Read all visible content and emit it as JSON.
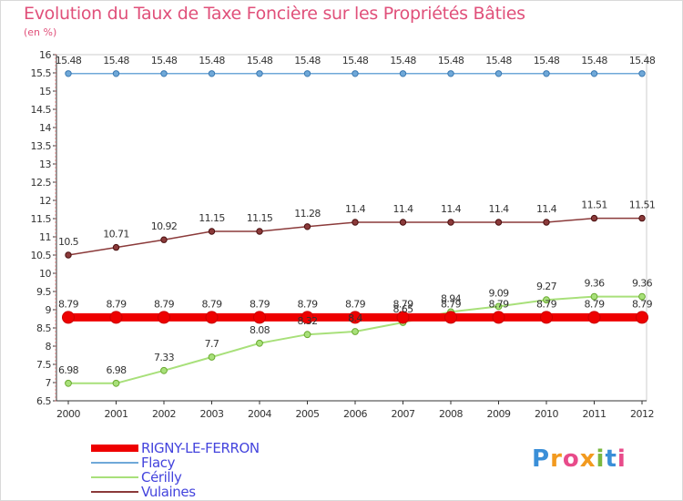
{
  "chart_data": {
    "type": "line",
    "title": "Evolution du Taux de Taxe Foncière sur les Propriétés Bâties",
    "subtitle": "(en %)",
    "x": [
      "2000",
      "2001",
      "2002",
      "2003",
      "2004",
      "2005",
      "2006",
      "2007",
      "2008",
      "2009",
      "2010",
      "2011",
      "2012"
    ],
    "ylim": [
      6.5,
      16
    ],
    "yticks": [
      "6.5",
      "7",
      "7.5",
      "8",
      "8.5",
      "9",
      "9.5",
      "10",
      "10.5",
      "11",
      "11.5",
      "12",
      "12.5",
      "13",
      "13.5",
      "14",
      "14.5",
      "15",
      "15.5",
      "16"
    ],
    "grid": false,
    "legend_position": "bottom-left",
    "series": [
      {
        "name": "RIGNY-LE-FERRON",
        "color": "#ee0000",
        "values": [
          8.79,
          8.79,
          8.79,
          8.79,
          8.79,
          8.79,
          8.79,
          8.79,
          8.79,
          8.79,
          8.79,
          8.79,
          8.79
        ],
        "labels": [
          "8.79",
          "8.79",
          "8.79",
          "8.79",
          "8.79",
          "8.79",
          "8.79",
          "8.79",
          "8.79",
          "8.79",
          "8.79",
          "8.79",
          "8.79"
        ]
      },
      {
        "name": "Flacy",
        "color": "#6fa8d8",
        "values": [
          15.48,
          15.48,
          15.48,
          15.48,
          15.48,
          15.48,
          15.48,
          15.48,
          15.48,
          15.48,
          15.48,
          15.48,
          15.48
        ],
        "labels": [
          "15.48",
          "15.48",
          "15.48",
          "15.48",
          "15.48",
          "15.48",
          "15.48",
          "15.48",
          "15.48",
          "15.48",
          "15.48",
          "15.48",
          "15.48"
        ]
      },
      {
        "name": "Cérilly",
        "color": "#a8e07a",
        "values": [
          6.98,
          6.98,
          7.33,
          7.7,
          8.08,
          8.32,
          8.4,
          8.65,
          8.94,
          9.09,
          9.27,
          9.36,
          9.36
        ],
        "labels": [
          "6.98",
          "6.98",
          "7.33",
          "7.7",
          "8.08",
          "8.32",
          "8.4",
          "8.65",
          "8.94",
          "9.09",
          "9.27",
          "9.36",
          "9.36"
        ]
      },
      {
        "name": "Vulaines",
        "color": "#8b3a3a",
        "values": [
          10.5,
          10.71,
          10.92,
          11.15,
          11.15,
          11.28,
          11.4,
          11.4,
          11.4,
          11.4,
          11.4,
          11.51,
          11.51
        ],
        "labels": [
          "10.5",
          "10.71",
          "10.92",
          "11.15",
          "11.15",
          "11.28",
          "11.4",
          "11.4",
          "11.4",
          "11.4",
          "11.4",
          "11.51",
          "11.51"
        ]
      }
    ]
  },
  "legend": {
    "items": [
      {
        "label": "RIGNY-LE-FERRON",
        "color": "#ee0000"
      },
      {
        "label": "Flacy",
        "color": "#6fa8d8"
      },
      {
        "label": "Cérilly",
        "color": "#a8e07a"
      },
      {
        "label": "Vulaines",
        "color": "#8b3a3a"
      }
    ]
  },
  "brand": {
    "logo_letters": [
      "P",
      "r",
      "o",
      "x",
      "i",
      "t",
      "i"
    ]
  }
}
